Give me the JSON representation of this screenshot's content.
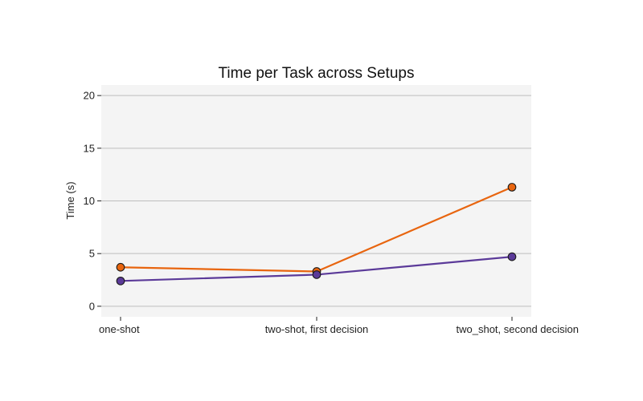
{
  "chart_data": {
    "type": "line",
    "title": "Time per Task across Setups",
    "xlabel": "",
    "ylabel": "Time (s)",
    "categories": [
      "one-shot",
      "two-shot, first decision",
      "two_shot, second decision"
    ],
    "ylim": [
      -1,
      21
    ],
    "yticks": [
      0,
      5,
      10,
      15,
      20
    ],
    "grid": "horizontal",
    "legend": "none",
    "background": "#f4f4f4",
    "series": [
      {
        "color": "#e8650f",
        "values": [
          3.7,
          3.3,
          11.3
        ]
      },
      {
        "color": "#5b3a99",
        "values": [
          2.4,
          3.0,
          4.7
        ]
      }
    ]
  }
}
